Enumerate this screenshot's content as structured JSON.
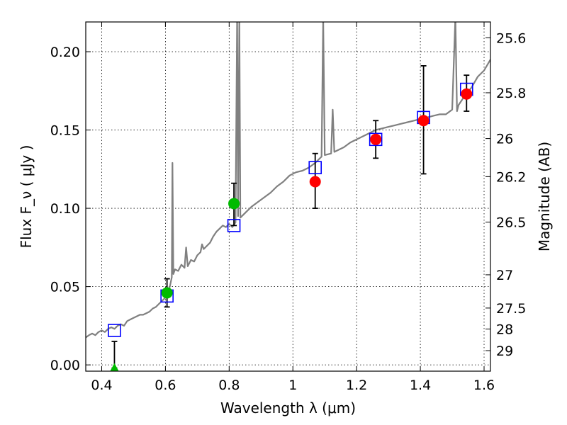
{
  "chart_data": {
    "type": "scatter",
    "title": "",
    "xlabel": "Wavelength λ (μm)",
    "ylabel": "Flux F_ν ( μJy )",
    "ylabel_right": "Magnitude (AB)",
    "xlim": [
      0.35,
      1.62
    ],
    "ylim": [
      -0.004,
      0.219
    ],
    "grid": true,
    "x_ticks": [
      {
        "value": 0.4,
        "label": "0.4"
      },
      {
        "value": 0.6,
        "label": "0.6"
      },
      {
        "value": 0.8,
        "label": "0.8"
      },
      {
        "value": 1.0,
        "label": "1"
      },
      {
        "value": 1.2,
        "label": "1.2"
      },
      {
        "value": 1.4,
        "label": "1.4"
      },
      {
        "value": 1.6,
        "label": "1.6"
      }
    ],
    "y_ticks": [
      {
        "value": 0.0,
        "label": "0.00"
      },
      {
        "value": 0.05,
        "label": "0.05"
      },
      {
        "value": 0.1,
        "label": "0.10"
      },
      {
        "value": 0.15,
        "label": "0.15"
      },
      {
        "value": 0.2,
        "label": "0.20"
      }
    ],
    "mag_ticks": [
      {
        "value": 25.6,
        "label": "25.6"
      },
      {
        "value": 25.8,
        "label": "25.8"
      },
      {
        "value": 26.0,
        "label": "26"
      },
      {
        "value": 26.2,
        "label": "26.2"
      },
      {
        "value": 26.5,
        "label": "26.5"
      },
      {
        "value": 27.0,
        "label": "27"
      },
      {
        "value": 27.5,
        "label": "27.5"
      },
      {
        "value": 28.0,
        "label": "28"
      },
      {
        "value": 29.0,
        "label": "29"
      }
    ],
    "colors": {
      "model": "#808080",
      "model_points": "#0000ff",
      "detections_green": "#00bb00",
      "detections_red": "#ff0000",
      "errorbar": "#000000",
      "upper_limit": "#00bb00"
    },
    "series": [
      {
        "type": "line",
        "points": [
          [
            0.35,
            0.0175
          ],
          [
            0.36,
            0.019
          ],
          [
            0.37,
            0.02
          ],
          [
            0.38,
            0.019
          ],
          [
            0.39,
            0.021
          ],
          [
            0.4,
            0.022
          ],
          [
            0.41,
            0.021
          ],
          [
            0.42,
            0.023
          ],
          [
            0.43,
            0.024
          ],
          [
            0.44,
            0.023
          ],
          [
            0.45,
            0.025
          ],
          [
            0.46,
            0.026
          ],
          [
            0.47,
            0.025
          ],
          [
            0.48,
            0.028
          ],
          [
            0.49,
            0.029
          ],
          [
            0.5,
            0.03
          ],
          [
            0.51,
            0.031
          ],
          [
            0.52,
            0.032
          ],
          [
            0.53,
            0.032
          ],
          [
            0.54,
            0.033
          ],
          [
            0.55,
            0.034
          ],
          [
            0.56,
            0.036
          ],
          [
            0.57,
            0.037
          ],
          [
            0.58,
            0.039
          ],
          [
            0.59,
            0.041
          ],
          [
            0.6,
            0.043
          ],
          [
            0.605,
            0.044
          ],
          [
            0.61,
            0.047
          ],
          [
            0.615,
            0.051
          ],
          [
            0.62,
            0.056
          ],
          [
            0.622,
            0.129
          ],
          [
            0.625,
            0.058
          ],
          [
            0.63,
            0.061
          ],
          [
            0.64,
            0.06
          ],
          [
            0.65,
            0.064
          ],
          [
            0.66,
            0.062
          ],
          [
            0.665,
            0.075
          ],
          [
            0.67,
            0.063
          ],
          [
            0.68,
            0.067
          ],
          [
            0.69,
            0.066
          ],
          [
            0.7,
            0.07
          ],
          [
            0.71,
            0.072
          ],
          [
            0.715,
            0.077
          ],
          [
            0.72,
            0.074
          ],
          [
            0.73,
            0.076
          ],
          [
            0.74,
            0.078
          ],
          [
            0.75,
            0.082
          ],
          [
            0.76,
            0.085
          ],
          [
            0.77,
            0.087
          ],
          [
            0.78,
            0.089
          ],
          [
            0.79,
            0.088
          ],
          [
            0.8,
            0.09
          ],
          [
            0.81,
            0.088
          ],
          [
            0.82,
            0.091
          ],
          [
            0.825,
            0.225
          ],
          [
            0.828,
            0.095
          ],
          [
            0.832,
            0.225
          ],
          [
            0.835,
            0.094
          ],
          [
            0.85,
            0.097
          ],
          [
            0.87,
            0.101
          ],
          [
            0.89,
            0.104
          ],
          [
            0.91,
            0.107
          ],
          [
            0.93,
            0.11
          ],
          [
            0.95,
            0.114
          ],
          [
            0.97,
            0.117
          ],
          [
            0.99,
            0.121
          ],
          [
            1.01,
            0.123
          ],
          [
            1.03,
            0.124
          ],
          [
            1.05,
            0.126
          ],
          [
            1.07,
            0.129
          ],
          [
            1.09,
            0.133
          ],
          [
            1.095,
            0.221
          ],
          [
            1.1,
            0.134
          ],
          [
            1.12,
            0.135
          ],
          [
            1.125,
            0.163
          ],
          [
            1.13,
            0.136
          ],
          [
            1.14,
            0.137
          ],
          [
            1.16,
            0.139
          ],
          [
            1.18,
            0.142
          ],
          [
            1.2,
            0.144
          ],
          [
            1.22,
            0.146
          ],
          [
            1.24,
            0.148
          ],
          [
            1.26,
            0.15
          ],
          [
            1.28,
            0.151
          ],
          [
            1.3,
            0.152
          ],
          [
            1.32,
            0.153
          ],
          [
            1.34,
            0.154
          ],
          [
            1.36,
            0.155
          ],
          [
            1.38,
            0.156
          ],
          [
            1.4,
            0.157
          ],
          [
            1.42,
            0.158
          ],
          [
            1.44,
            0.159
          ],
          [
            1.46,
            0.16
          ],
          [
            1.48,
            0.16
          ],
          [
            1.5,
            0.163
          ],
          [
            1.51,
            0.222
          ],
          [
            1.515,
            0.162
          ],
          [
            1.52,
            0.166
          ],
          [
            1.54,
            0.172
          ],
          [
            1.56,
            0.177
          ],
          [
            1.58,
            0.184
          ],
          [
            1.6,
            0.188
          ],
          [
            1.62,
            0.195
          ]
        ]
      },
      {
        "type": "scatter",
        "marker": "square",
        "points": [
          [
            0.44,
            0.022
          ],
          [
            0.605,
            0.044
          ],
          [
            0.815,
            0.089
          ],
          [
            1.07,
            0.126
          ],
          [
            1.26,
            0.144
          ],
          [
            1.41,
            0.158
          ],
          [
            1.545,
            0.176
          ]
        ]
      },
      {
        "type": "scatter",
        "marker": "circle",
        "points": [
          [
            0.605,
            0.046
          ],
          [
            0.815,
            0.103
          ]
        ],
        "errors": [
          [
            0.605,
            0.037,
            0.055
          ],
          [
            0.815,
            0.089,
            0.116
          ]
        ]
      },
      {
        "type": "scatter",
        "marker": "circle",
        "points": [
          [
            1.07,
            0.117
          ],
          [
            1.26,
            0.144
          ],
          [
            1.41,
            0.156
          ],
          [
            1.545,
            0.173
          ]
        ],
        "errors": [
          [
            1.07,
            0.1,
            0.135
          ],
          [
            1.26,
            0.132,
            0.156
          ],
          [
            1.41,
            0.122,
            0.191
          ],
          [
            1.545,
            0.162,
            0.185
          ]
        ]
      },
      {
        "type": "scatter",
        "marker": "triangle-up",
        "points": [
          [
            0.44,
            -0.002
          ]
        ],
        "errors": [
          [
            0.44,
            -0.002,
            0.015
          ]
        ]
      }
    ]
  }
}
